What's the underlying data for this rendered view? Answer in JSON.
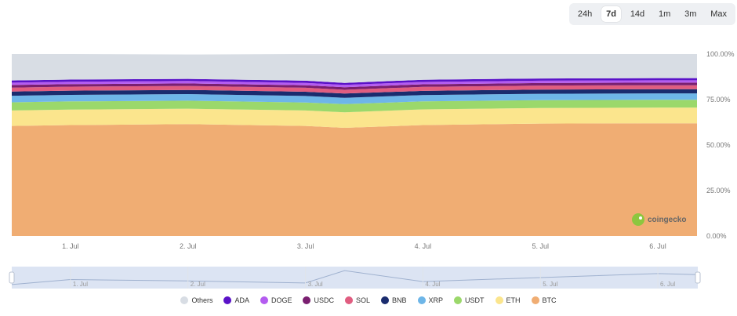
{
  "range_selector": {
    "buttons": [
      "24h",
      "7d",
      "14d",
      "1m",
      "3m",
      "Max"
    ],
    "active": "7d"
  },
  "watermark": {
    "text": "coingecko"
  },
  "chart_data": {
    "type": "area",
    "stacked": true,
    "x": [
      "2024-06-30 12:00",
      "2024-07-01",
      "2024-07-02",
      "2024-07-03",
      "2024-07-03 08:00",
      "2024-07-04",
      "2024-07-05",
      "2024-07-06",
      "2024-07-06 08:00"
    ],
    "x_tick_labels": [
      "1. Jul",
      "2. Jul",
      "3. Jul",
      "4. Jul",
      "5. Jul",
      "6. Jul"
    ],
    "y_tick_labels": [
      "100.00%",
      "75.00%",
      "50.00%",
      "25.00%",
      "0.00%"
    ],
    "ylim": [
      0,
      100
    ],
    "grid": false,
    "legend_position": "bottom",
    "series": [
      {
        "name": "BTC",
        "color": "#f0ad73",
        "values": [
          60.5,
          61.0,
          61.5,
          60.5,
          59.5,
          61.0,
          61.8,
          62.0,
          62.0
        ]
      },
      {
        "name": "ETH",
        "color": "#fbe58d",
        "values": [
          8.5,
          8.5,
          8.5,
          8.5,
          8.5,
          8.6,
          8.6,
          8.6,
          8.6
        ]
      },
      {
        "name": "USDT",
        "color": "#9bd86b",
        "values": [
          4.5,
          4.5,
          4.4,
          4.4,
          4.5,
          4.4,
          4.3,
          4.3,
          4.3
        ]
      },
      {
        "name": "XRP",
        "color": "#6eb6e8",
        "values": [
          3.6,
          3.6,
          3.6,
          3.6,
          3.5,
          3.5,
          3.5,
          3.5,
          3.5
        ]
      },
      {
        "name": "BNB",
        "color": "#1a2c6e",
        "values": [
          2.3,
          2.3,
          2.3,
          2.3,
          2.3,
          2.3,
          2.3,
          2.3,
          2.3
        ]
      },
      {
        "name": "SOL",
        "color": "#e05d80",
        "values": [
          2.2,
          2.2,
          2.2,
          2.2,
          2.1,
          2.2,
          2.2,
          2.2,
          2.2
        ]
      },
      {
        "name": "USDC",
        "color": "#7a1f70",
        "values": [
          1.4,
          1.4,
          1.4,
          1.4,
          1.4,
          1.4,
          1.4,
          1.4,
          1.4
        ]
      },
      {
        "name": "DOGE",
        "color": "#b45cf0",
        "values": [
          1.3,
          1.3,
          1.3,
          1.3,
          1.3,
          1.3,
          1.3,
          1.3,
          1.3
        ]
      },
      {
        "name": "ADA",
        "color": "#5a12c8",
        "values": [
          1.2,
          1.2,
          1.2,
          1.2,
          1.1,
          1.2,
          1.2,
          1.2,
          1.2
        ]
      },
      {
        "name": "Others",
        "color": "#d8dde4",
        "values": [
          14.5,
          14.0,
          13.4,
          14.6,
          15.8,
          14.1,
          13.4,
          13.2,
          13.2
        ]
      }
    ],
    "navigator": {
      "x_tick_labels": [
        "1. Jul",
        "2. Jul",
        "3. Jul",
        "4. Jul",
        "5. Jul",
        "6. Jul"
      ],
      "values": [
        59.0,
        61.5,
        60.8,
        59.8,
        66.0,
        60.5,
        62.5,
        64.5,
        64.0
      ]
    }
  }
}
